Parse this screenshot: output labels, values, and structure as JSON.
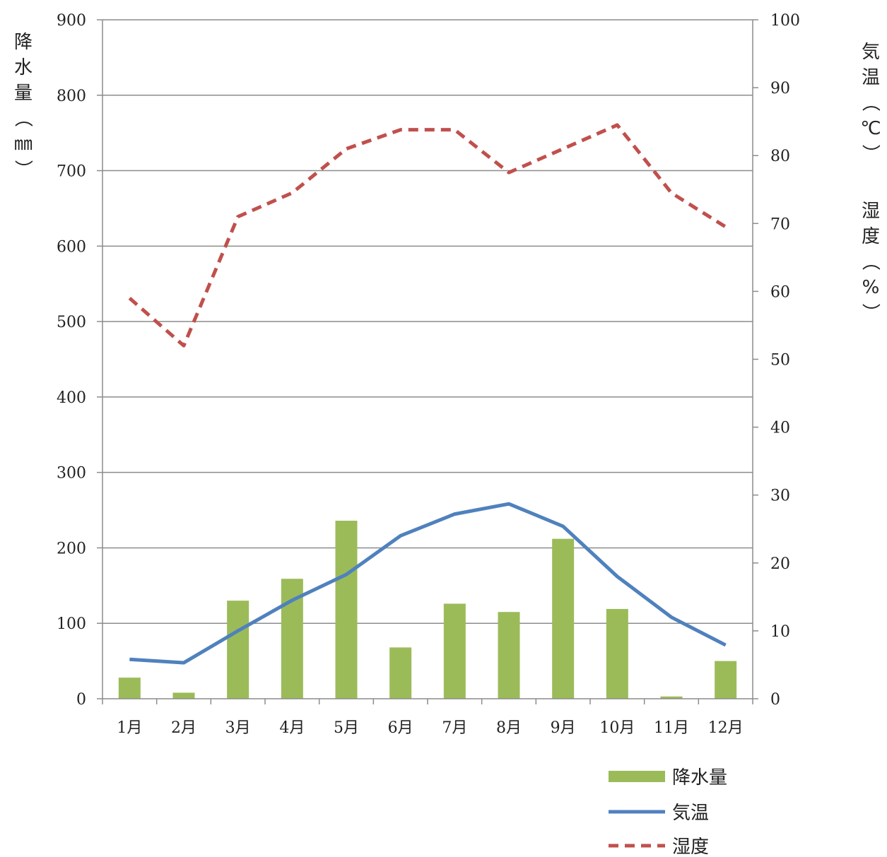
{
  "chart_data": {
    "type": "bar",
    "categories": [
      "1月",
      "2月",
      "3月",
      "4月",
      "5月",
      "6月",
      "7月",
      "8月",
      "9月",
      "10月",
      "11月",
      "12月"
    ],
    "series": [
      {
        "name": "降水量",
        "type": "bar",
        "axis": "left",
        "color": "#9BBB59",
        "values": [
          28,
          8,
          130,
          159,
          236,
          68,
          126,
          115,
          212,
          119,
          3,
          50
        ]
      },
      {
        "name": "気温",
        "type": "line",
        "axis": "right",
        "color": "#4F81BD",
        "values": [
          5.8,
          5.3,
          10.0,
          14.5,
          18.3,
          24.0,
          27.2,
          28.7,
          25.4,
          18.0,
          12.0,
          7.9
        ]
      },
      {
        "name": "湿度",
        "type": "line",
        "dash": "dashed",
        "axis": "right",
        "color": "#C0504D",
        "values": [
          59,
          52,
          71,
          74.5,
          81,
          83.8,
          83.8,
          77.5,
          81,
          84.5,
          74.5,
          69.5
        ]
      }
    ],
    "left_axis": {
      "label": "降水量（㎜）",
      "ylim": [
        0,
        900
      ],
      "ticks": [
        "0",
        "100",
        "200",
        "300",
        "400",
        "500",
        "600",
        "700",
        "800",
        "900"
      ]
    },
    "right_axis": {
      "label_top": "気温（℃）",
      "label_bottom": "湿度（%）",
      "ylim": [
        0,
        100
      ],
      "ticks": [
        "0",
        "10",
        "20",
        "30",
        "40",
        "50",
        "60",
        "70",
        "80",
        "90",
        "100"
      ]
    },
    "grid": true,
    "legend_position": "bottom-right"
  }
}
